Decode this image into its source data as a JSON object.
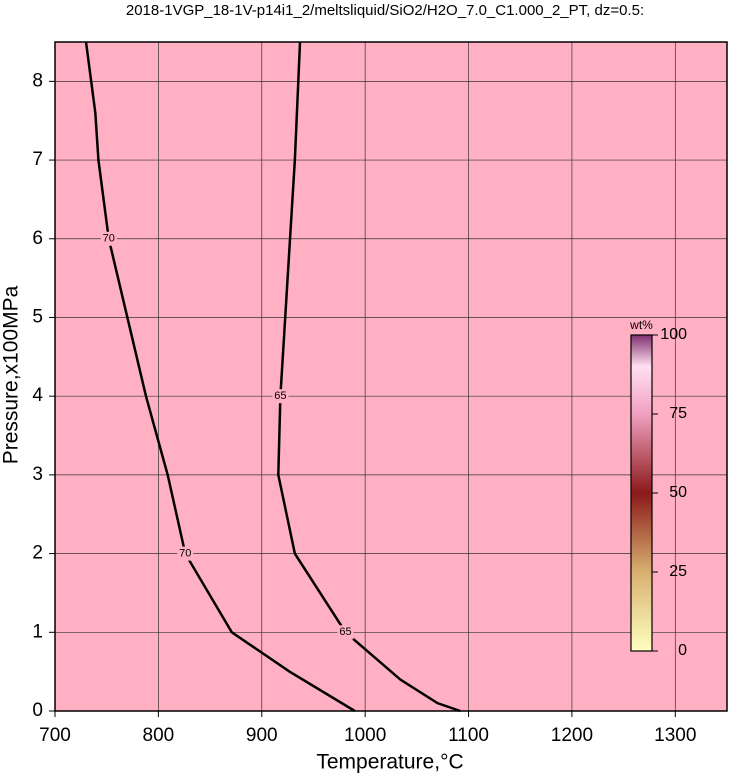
{
  "chart_data": {
    "type": "contour",
    "title": "2018-1VGP_18-1V-p14i1_2/meltsliquid/SiO2/H2O_7.0_C1.000_2_PT, dz=0.5:",
    "x_label": "Temperature,°C",
    "y_label": "Pressure,x100MPa",
    "xlim": [
      700,
      1350
    ],
    "ylim": [
      0,
      8.5
    ],
    "xticks": [
      700,
      800,
      900,
      1000,
      1100,
      1200,
      1300
    ],
    "yticks": [
      0,
      1,
      2,
      3,
      4,
      5,
      6,
      7,
      8
    ],
    "grid": true,
    "color": "#ffb0c2",
    "contours": [
      {
        "level": 70,
        "x": [
          730,
          739,
          742,
          752,
          770,
          788,
          809,
          826,
          871,
          927,
          990
        ],
        "y": [
          8.5,
          7.6,
          7,
          6,
          5,
          4,
          3,
          2,
          1,
          0.5,
          0
        ]
      },
      {
        "level": 65,
        "x": [
          937,
          932,
          925,
          918,
          916,
          932,
          981,
          1034,
          1070,
          1092
        ],
        "y": [
          8.5,
          7,
          5.5,
          4,
          3,
          2,
          1,
          0.4,
          0.1,
          0
        ]
      }
    ],
    "colorbar": {
      "label": "wt%",
      "lim": [
        0,
        100
      ],
      "ticks": [
        0,
        25,
        50,
        75,
        100
      ]
    }
  }
}
